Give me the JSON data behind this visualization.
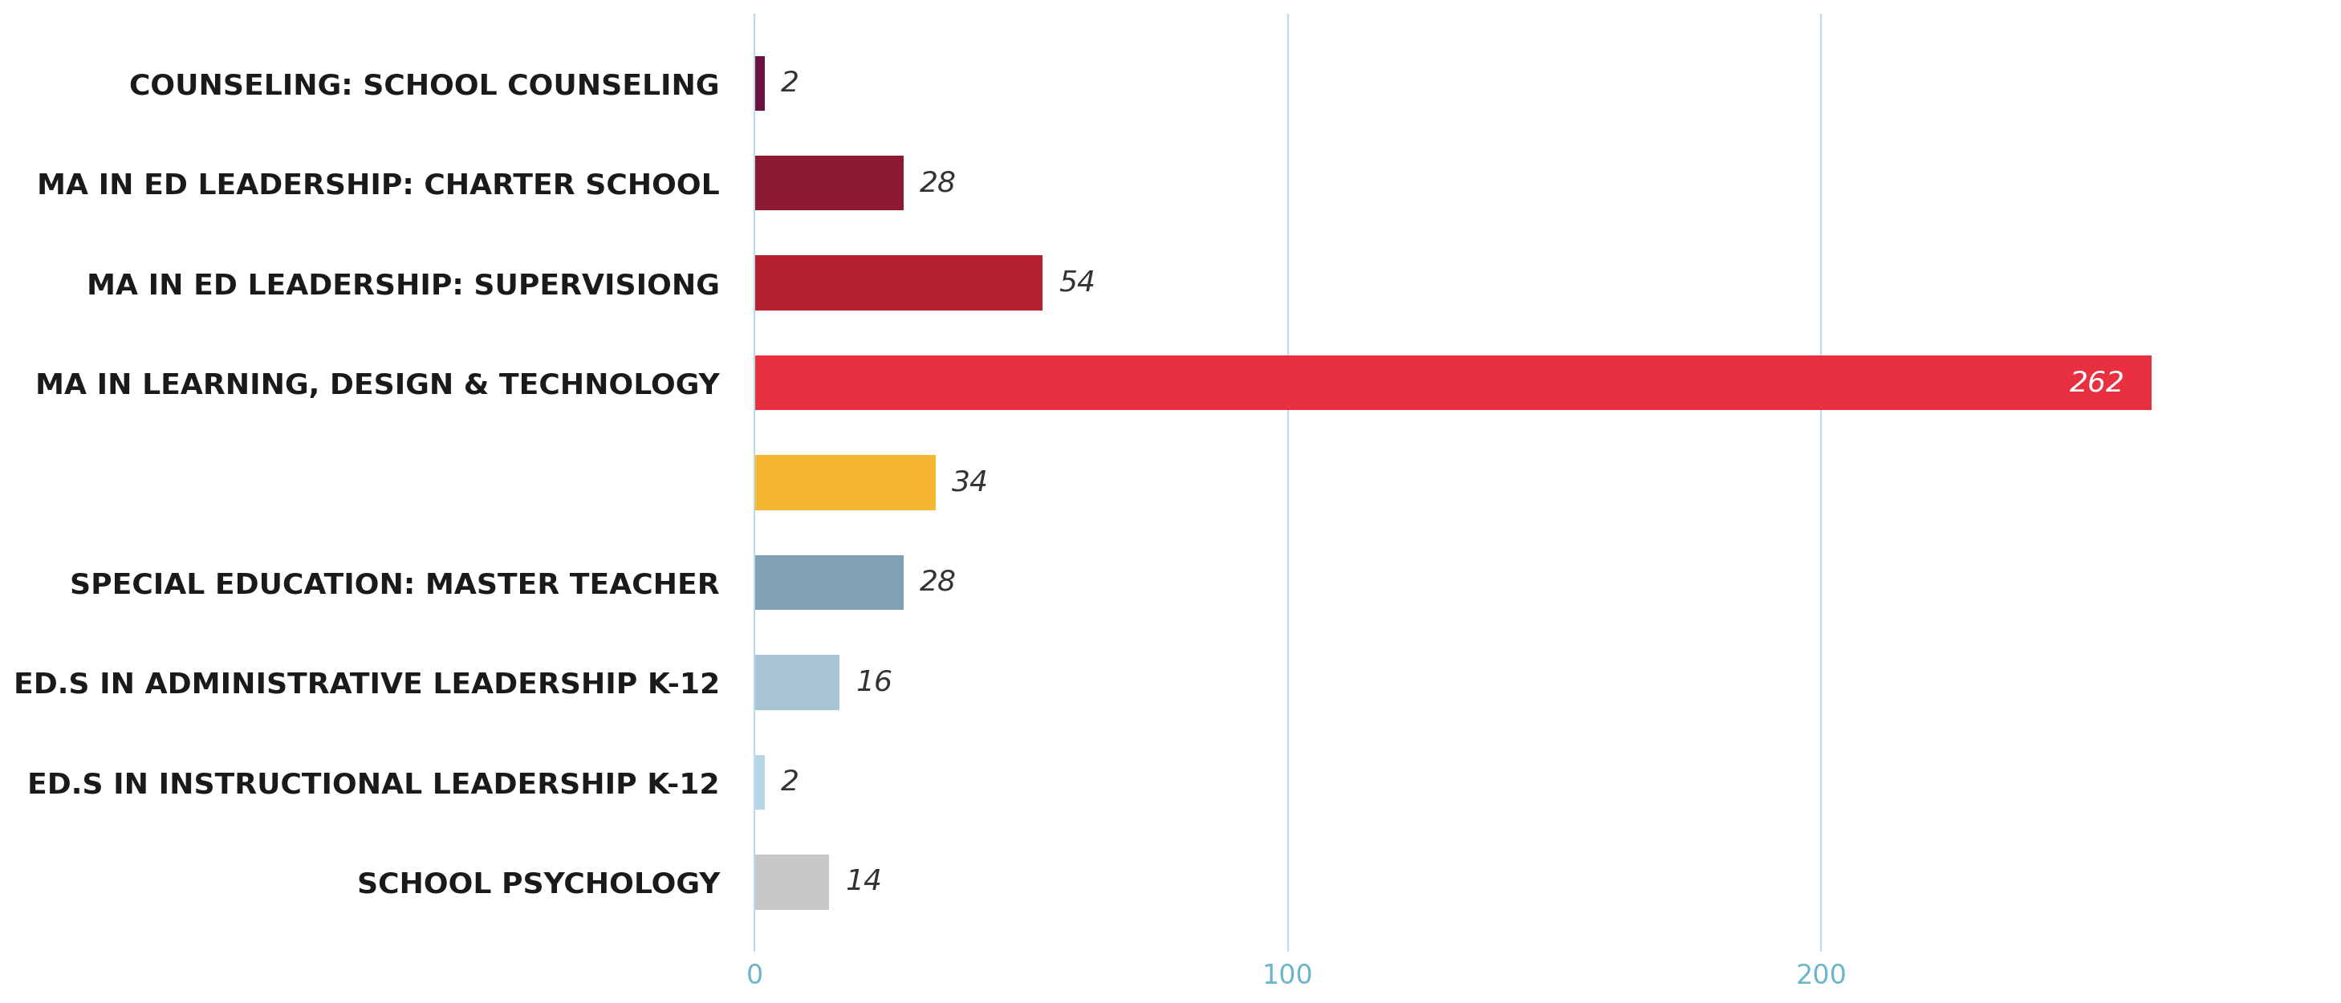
{
  "categories": [
    "COUNSELING: SCHOOL COUNSELING",
    "MA IN ED LEADERSHIP: CHARTER SCHOOL",
    "MA IN ED LEADERSHIP: SUPERVISIONG",
    "MA IN LEARNING, DESIGN & TECHNOLOGY",
    "",
    "SPECIAL EDUCATION: MASTER TEACHER",
    "ED.S IN ADMINISTRATIVE LEADERSHIP K-12",
    "ED.S IN INSTRUCTIONAL LEADERSHIP K-12",
    "SCHOOL PSYCHOLOGY"
  ],
  "values": [
    2,
    28,
    54,
    262,
    34,
    28,
    16,
    2,
    14
  ],
  "bar_colors": [
    "#6b1040",
    "#8b1a30",
    "#b52030",
    "#e83040",
    "#f5b731",
    "#7fa0b5",
    "#a8c5d5",
    "#b8d5e5",
    "#c8c8c8"
  ],
  "background_color": "#ffffff",
  "grid_color": "#b8dde8",
  "label_fontsize": 26,
  "value_fontsize": 26,
  "tick_fontsize": 24,
  "bar_height": 0.55,
  "xlim_min": -4,
  "xlim_max": 295,
  "xticks": [
    0,
    100,
    200
  ],
  "value_label_262_color": "white",
  "value_label_other_color": "#333333"
}
